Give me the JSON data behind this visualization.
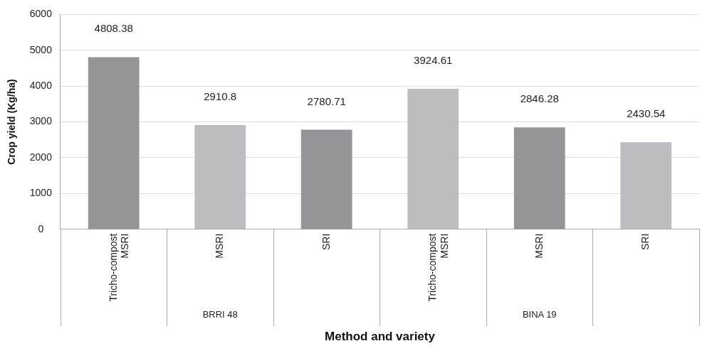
{
  "chart_data": {
    "type": "bar",
    "xlabel": "Method and variety",
    "ylabel": "Crop yield (Kg/ha)",
    "categories": [
      "Tricho-compost MSRI",
      "MSRI",
      "SRI",
      "Tricho-compost MSRI",
      "MSRI",
      "SRI"
    ],
    "values": [
      4808.38,
      2910.8,
      2780.71,
      3924.61,
      2846.28,
      2430.54
    ],
    "colors": [
      "#939598",
      "#bcbdc0",
      "#939598",
      "#bcbdc0",
      "#939598",
      "#bcbdc0"
    ],
    "ylim": [
      0,
      6000
    ],
    "yticks": [
      0,
      1000,
      2000,
      3000,
      4000,
      5000,
      6000
    ],
    "grid": "y",
    "data_labels": true,
    "legend": false,
    "annotations": [
      "BRRI 48",
      "BINA 19"
    ]
  }
}
